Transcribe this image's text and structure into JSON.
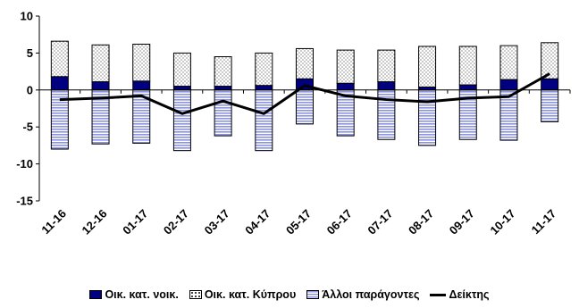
{
  "chart_data": {
    "type": "bar",
    "title": "",
    "xlabel": "",
    "ylabel": "",
    "ylim": [
      -15,
      10
    ],
    "yticks": [
      10,
      5,
      0,
      -5,
      -10,
      -15
    ],
    "categories": [
      "11-16",
      "12-16",
      "01-17",
      "02-17",
      "03-17",
      "04-17",
      "05-17",
      "06-17",
      "07-17",
      "08-17",
      "09-17",
      "10-17",
      "11-17"
    ],
    "series": [
      {
        "name": "Οικ. κατ. νοικ.",
        "kind": "stacked-bar",
        "pattern": "solid-navy",
        "values": [
          1.8,
          1.1,
          1.2,
          0.5,
          0.5,
          0.6,
          1.5,
          0.9,
          1.1,
          0.4,
          0.7,
          1.4,
          1.5
        ]
      },
      {
        "name": "Οικ. κατ. Κύπρου",
        "kind": "stacked-bar",
        "pattern": "dotted",
        "values": [
          4.8,
          5.0,
          5.0,
          4.5,
          4.0,
          4.4,
          4.1,
          4.5,
          4.3,
          5.5,
          5.2,
          4.6,
          4.9
        ]
      },
      {
        "name": "Άλλοι παράγοντες",
        "kind": "stacked-bar",
        "pattern": "horizontal-stripes",
        "values": [
          -8.0,
          -7.3,
          -7.2,
          -8.2,
          -6.2,
          -8.2,
          -4.6,
          -6.2,
          -6.7,
          -7.5,
          -6.7,
          -6.8,
          -4.3
        ]
      },
      {
        "name": "Δείκτης",
        "kind": "line",
        "values": [
          -1.3,
          -1.1,
          -0.8,
          -3.2,
          -1.5,
          -3.2,
          0.6,
          -0.8,
          -1.3,
          -1.6,
          -1.1,
          -0.9,
          2.2
        ]
      }
    ],
    "grid": false,
    "legend_position": "bottom"
  },
  "colors": {
    "navy": "#000080",
    "stripe_blue": "#8C94E0",
    "bar_outline": "#000000",
    "line": "#000000"
  }
}
